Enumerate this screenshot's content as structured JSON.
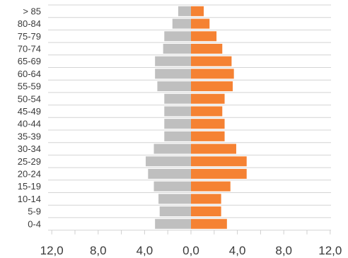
{
  "chart_data": {
    "type": "bar",
    "orientation": "horizontal",
    "layout": "population-pyramid",
    "title": "",
    "xlabel": "",
    "ylabel": "",
    "categories": [
      "0-4",
      "5-9",
      "10-14",
      "15-19",
      "20-24",
      "25-29",
      "30-34",
      "35-39",
      "40-44",
      "45-49",
      "50-54",
      "55-59",
      "60-64",
      "65-69",
      "70-74",
      "75-79",
      "80-84",
      "> 85"
    ],
    "series": [
      {
        "side": "left",
        "color": "#bfbfbf",
        "values": [
          3.1,
          2.7,
          2.8,
          3.2,
          3.7,
          3.9,
          3.2,
          2.3,
          2.3,
          2.3,
          2.3,
          2.9,
          3.1,
          3.1,
          2.4,
          2.3,
          1.6,
          1.1
        ]
      },
      {
        "side": "right",
        "color": "#f58233",
        "values": [
          3.1,
          2.6,
          2.6,
          3.4,
          4.8,
          4.8,
          3.9,
          2.9,
          2.9,
          2.7,
          2.9,
          3.6,
          3.7,
          3.5,
          2.7,
          2.2,
          1.6,
          1.1
        ]
      }
    ],
    "xlim": [
      -12,
      12
    ],
    "xticks": [
      -12,
      -8,
      -4,
      0,
      4,
      8,
      12
    ],
    "xtick_labels": [
      "12,0",
      "8,0",
      "4,0",
      "0,0",
      "4,0",
      "8,0",
      "12,0"
    ],
    "grid": "horizontal lines between categories",
    "legend": "none"
  }
}
